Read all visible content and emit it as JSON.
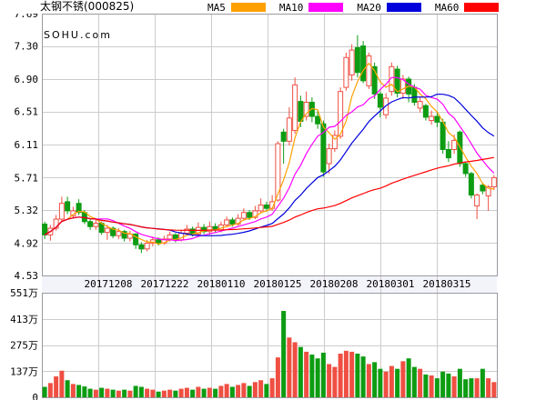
{
  "header": {
    "title": "太钢不锈(000825)",
    "legend": [
      {
        "label": "MA5",
        "color": "#ffa000"
      },
      {
        "label": "MA10",
        "color": "#ff00ff"
      },
      {
        "label": "MA20",
        "color": "#0000dd"
      },
      {
        "label": "MA60",
        "color": "#ff0000"
      }
    ]
  },
  "watermark": "SOHU.com",
  "chart_data": {
    "type": "candlestick",
    "title": "太钢不锈(000825)",
    "price_min": 4.53,
    "price_max": 7.69,
    "price_ticks": [
      "7.69",
      "7.30",
      "6.90",
      "6.51",
      "6.11",
      "5.71",
      "5.32",
      "4.92",
      "4.53"
    ],
    "price_tick_values": [
      7.69,
      7.3,
      6.9,
      6.51,
      6.11,
      5.71,
      5.32,
      4.92,
      4.53
    ],
    "volume_max": 551,
    "volume_ticks": [
      "551万",
      "413万",
      "275万",
      "137万",
      "0"
    ],
    "volume_tick_values": [
      551,
      413,
      275,
      137,
      0
    ],
    "x_labels": [
      "20171208",
      "20171222",
      "20180110",
      "20180125",
      "20180208",
      "20180301",
      "20180315"
    ],
    "legend_entries": [
      "MA5",
      "MA10",
      "MA20",
      "MA60"
    ],
    "ma_periods": [
      5,
      10,
      20,
      60
    ],
    "grid": true,
    "candles_format": [
      "open",
      "high",
      "low",
      "close",
      "volume_wan"
    ],
    "candles": [
      [
        5.15,
        5.18,
        4.97,
        5.02,
        55
      ],
      [
        5.02,
        5.14,
        4.95,
        5.1,
        75
      ],
      [
        5.1,
        5.26,
        5.07,
        5.21,
        110
      ],
      [
        5.21,
        5.48,
        5.17,
        5.4,
        140
      ],
      [
        5.42,
        5.48,
        5.27,
        5.31,
        90
      ],
      [
        5.25,
        5.36,
        5.22,
        5.31,
        70
      ],
      [
        5.4,
        5.45,
        5.26,
        5.29,
        65
      ],
      [
        5.29,
        5.32,
        5.15,
        5.18,
        57
      ],
      [
        5.18,
        5.22,
        5.08,
        5.12,
        45
      ],
      [
        5.12,
        5.2,
        5.08,
        5.16,
        40
      ],
      [
        5.16,
        5.18,
        5.02,
        5.05,
        50
      ],
      [
        5.05,
        5.14,
        4.96,
        5.1,
        45
      ],
      [
        5.1,
        5.12,
        4.98,
        5.01,
        40
      ],
      [
        5.01,
        5.1,
        4.97,
        5.06,
        35
      ],
      [
        5.06,
        5.08,
        4.94,
        4.98,
        40
      ],
      [
        4.98,
        5.07,
        4.94,
        5.03,
        35
      ],
      [
        5.03,
        5.04,
        4.85,
        4.9,
        60
      ],
      [
        4.9,
        4.93,
        4.8,
        4.85,
        55
      ],
      [
        4.85,
        4.96,
        4.82,
        4.92,
        45
      ],
      [
        4.92,
        5.0,
        4.88,
        4.96,
        40
      ],
      [
        4.96,
        4.99,
        4.89,
        4.92,
        30
      ],
      [
        4.92,
        5.01,
        4.9,
        4.97,
        35
      ],
      [
        4.97,
        5.06,
        4.94,
        5.02,
        40
      ],
      [
        5.02,
        5.04,
        4.93,
        4.96,
        35
      ],
      [
        4.96,
        5.08,
        4.94,
        5.04,
        45
      ],
      [
        5.04,
        5.14,
        5.01,
        5.09,
        50
      ],
      [
        5.09,
        5.12,
        5.0,
        5.03,
        40
      ],
      [
        5.03,
        5.17,
        5.01,
        5.11,
        55
      ],
      [
        5.11,
        5.15,
        5.03,
        5.06,
        45
      ],
      [
        5.06,
        5.18,
        5.02,
        5.12,
        50
      ],
      [
        5.12,
        5.16,
        5.05,
        5.08,
        45
      ],
      [
        5.08,
        5.18,
        5.05,
        5.14,
        60
      ],
      [
        5.14,
        5.24,
        5.11,
        5.2,
        70
      ],
      [
        5.2,
        5.23,
        5.12,
        5.15,
        55
      ],
      [
        5.15,
        5.27,
        5.13,
        5.22,
        65
      ],
      [
        5.22,
        5.34,
        5.19,
        5.29,
        75
      ],
      [
        5.29,
        5.32,
        5.2,
        5.23,
        60
      ],
      [
        5.23,
        5.37,
        5.21,
        5.31,
        80
      ],
      [
        5.31,
        5.46,
        5.28,
        5.38,
        90
      ],
      [
        5.38,
        5.42,
        5.3,
        5.34,
        70
      ],
      [
        5.34,
        5.5,
        5.31,
        5.42,
        100
      ],
      [
        5.44,
        6.15,
        5.42,
        6.12,
        210
      ],
      [
        6.26,
        6.3,
        5.88,
        6.15,
        455
      ],
      [
        6.15,
        6.56,
        6.1,
        6.43,
        315
      ],
      [
        6.28,
        6.92,
        6.24,
        6.83,
        290
      ],
      [
        6.63,
        6.7,
        6.32,
        6.39,
        265
      ],
      [
        6.45,
        6.75,
        6.4,
        6.62,
        240
      ],
      [
        6.62,
        6.68,
        6.38,
        6.45,
        225
      ],
      [
        6.45,
        6.52,
        6.3,
        6.36,
        205
      ],
      [
        6.36,
        6.4,
        5.72,
        5.78,
        235
      ],
      [
        5.88,
        6.12,
        5.76,
        6.06,
        175
      ],
      [
        6.06,
        6.28,
        6.02,
        6.22,
        160
      ],
      [
        6.21,
        6.8,
        6.18,
        6.75,
        230
      ],
      [
        6.8,
        7.22,
        6.76,
        7.16,
        245
      ],
      [
        6.95,
        7.32,
        6.88,
        7.25,
        240
      ],
      [
        7.28,
        7.43,
        6.92,
        6.98,
        230
      ],
      [
        7.3,
        7.36,
        6.85,
        6.88,
        215
      ],
      [
        6.82,
        7.22,
        6.78,
        7.18,
        175
      ],
      [
        7.05,
        7.1,
        6.66,
        6.72,
        185
      ],
      [
        6.72,
        6.75,
        6.44,
        6.56,
        150
      ],
      [
        6.47,
        6.73,
        6.42,
        6.67,
        135
      ],
      [
        6.75,
        7.1,
        6.7,
        7.05,
        165
      ],
      [
        7.02,
        7.06,
        6.68,
        6.73,
        150
      ],
      [
        6.73,
        6.95,
        6.66,
        6.9,
        190
      ],
      [
        6.9,
        6.93,
        6.62,
        6.72,
        205
      ],
      [
        6.8,
        6.84,
        6.58,
        6.62,
        160
      ],
      [
        6.55,
        6.68,
        6.5,
        6.63,
        150
      ],
      [
        6.58,
        6.6,
        6.4,
        6.44,
        120
      ],
      [
        6.4,
        6.52,
        6.35,
        6.45,
        115
      ],
      [
        6.45,
        6.5,
        6.32,
        6.38,
        100
      ],
      [
        6.38,
        6.42,
        6.0,
        6.05,
        135
      ],
      [
        6.05,
        6.15,
        5.9,
        5.95,
        125
      ],
      [
        6.05,
        6.23,
        6.0,
        6.16,
        110
      ],
      [
        6.26,
        6.28,
        5.84,
        5.88,
        150
      ],
      [
        5.88,
        5.9,
        5.72,
        5.76,
        95
      ],
      [
        5.76,
        5.78,
        5.46,
        5.5,
        100
      ],
      [
        5.37,
        5.52,
        5.21,
        5.5,
        100
      ],
      [
        5.62,
        5.65,
        5.51,
        5.55,
        150
      ],
      [
        5.49,
        5.62,
        5.31,
        5.6,
        100
      ],
      [
        5.6,
        5.74,
        5.56,
        5.71,
        80
      ]
    ],
    "colors": {
      "up": "#ef4f42",
      "down": "#0d9c12",
      "ma5": "#ffa000",
      "ma10": "#ff00ff",
      "ma20": "#0000dd",
      "ma60": "#ff0000",
      "grid": "#cccccc",
      "border": "#9a9aa2",
      "strip_bg": "#f3f3fa",
      "watermark": "#e3e3ea",
      "text": "#000000"
    }
  }
}
